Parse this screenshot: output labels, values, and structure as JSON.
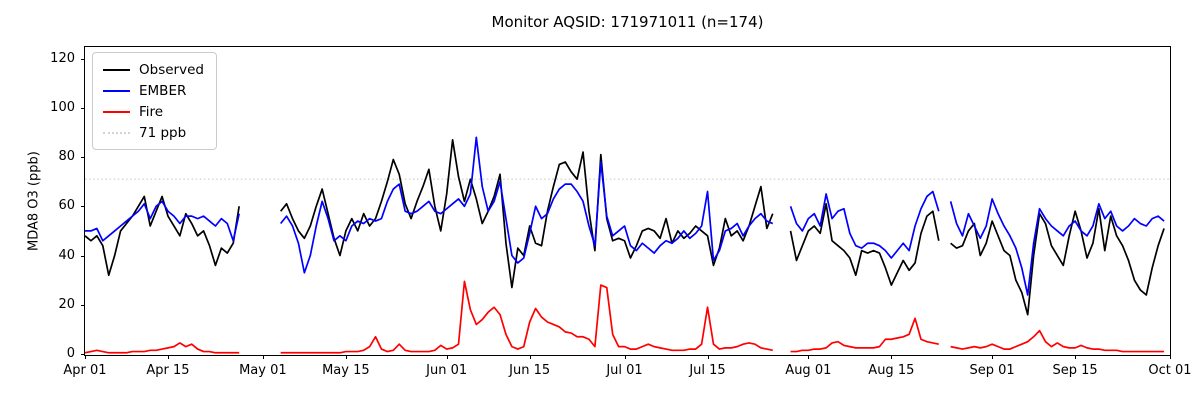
{
  "chart_data": {
    "type": "line",
    "title": "Monitor AQSID: 171971011 (n=174)",
    "xlabel": "",
    "ylabel": "MDA8 O3 (ppb)",
    "x_start_date": "Apr 01",
    "x_end_date": "Oct 01",
    "n_days": 183,
    "n_observations": 174,
    "ylim": [
      0,
      125
    ],
    "grid": false,
    "legend_position": "upper-left",
    "yticks": [
      0,
      20,
      40,
      60,
      80,
      100,
      120
    ],
    "xticks": [
      {
        "label": "Apr 01",
        "day": 0
      },
      {
        "label": "Apr 15",
        "day": 14
      },
      {
        "label": "May 01",
        "day": 30
      },
      {
        "label": "May 15",
        "day": 44
      },
      {
        "label": "Jun 01",
        "day": 61
      },
      {
        "label": "Jun 15",
        "day": 75
      },
      {
        "label": "Jul 01",
        "day": 91
      },
      {
        "label": "Jul 15",
        "day": 105
      },
      {
        "label": "Aug 01",
        "day": 122
      },
      {
        "label": "Aug 15",
        "day": 136
      },
      {
        "label": "Sep 01",
        "day": 153
      },
      {
        "label": "Sep 15",
        "day": 167
      },
      {
        "label": "Oct 01",
        "day": 183
      }
    ],
    "threshold": {
      "label": "71 ppb",
      "value": 71,
      "color": "#d4d4d4",
      "style": "dotted"
    },
    "series": [
      {
        "name": "Observed",
        "color": "#000000",
        "values": [
          48,
          46,
          48,
          44,
          32,
          40,
          50,
          53,
          56,
          60,
          64,
          52,
          58,
          64,
          56,
          52,
          48,
          57,
          53,
          48,
          50,
          44,
          36,
          43,
          41,
          45,
          60,
          null,
          null,
          null,
          null,
          null,
          null,
          58,
          61,
          55,
          50,
          47,
          52,
          60,
          67,
          57,
          47,
          40,
          50,
          55,
          50,
          57,
          52,
          55,
          62,
          70,
          79,
          73,
          61,
          55,
          62,
          68,
          75,
          60,
          50,
          65,
          87,
          72,
          62,
          71,
          63,
          53,
          58,
          64,
          73,
          45,
          27,
          43,
          40,
          52,
          45,
          44,
          58,
          68,
          77,
          78,
          74,
          71,
          82,
          58,
          42,
          81,
          55,
          46,
          47,
          46,
          39,
          44,
          50,
          51,
          50,
          47,
          55,
          45,
          50,
          47,
          49,
          52,
          50,
          48,
          36,
          43,
          55,
          48,
          50,
          46,
          52,
          60,
          68,
          51,
          57,
          null,
          null,
          50,
          38,
          44,
          50,
          52,
          49,
          61,
          46,
          44,
          42,
          39,
          32,
          42,
          41,
          42,
          41,
          35,
          28,
          33,
          38,
          34,
          37,
          49,
          56,
          58,
          46,
          null,
          45,
          43,
          44,
          50,
          53,
          40,
          45,
          54,
          48,
          42,
          40,
          30,
          25,
          16,
          40,
          57,
          53,
          44,
          40,
          36,
          48,
          58,
          50,
          39,
          45,
          59,
          42,
          56,
          48,
          44,
          38,
          30,
          26,
          24,
          35,
          44,
          51
        ]
      },
      {
        "name": "EMBER",
        "color": "#0000ff",
        "values": [
          50,
          50,
          51,
          46,
          48,
          50,
          52,
          54,
          56,
          58,
          61,
          55,
          60,
          62,
          58,
          56,
          53,
          56,
          56,
          55,
          56,
          54,
          52,
          55,
          53,
          46,
          57,
          null,
          null,
          null,
          null,
          null,
          null,
          53,
          56,
          52,
          45,
          33,
          40,
          52,
          62,
          55,
          46,
          48,
          46,
          52,
          54,
          53,
          55,
          54,
          55,
          62,
          67,
          69,
          58,
          57,
          58,
          60,
          62,
          58,
          57,
          59,
          61,
          63,
          60,
          65,
          88,
          68,
          58,
          62,
          70,
          55,
          40,
          37,
          39,
          49,
          60,
          55,
          57,
          63,
          67,
          69,
          69,
          66,
          62,
          52,
          44,
          78,
          56,
          48,
          50,
          52,
          44,
          42,
          45,
          43,
          41,
          44,
          46,
          45,
          47,
          50,
          47,
          49,
          52,
          66,
          38,
          42,
          50,
          51,
          53,
          48,
          52,
          55,
          57,
          54,
          53,
          null,
          null,
          60,
          53,
          50,
          55,
          57,
          52,
          65,
          55,
          58,
          59,
          49,
          44,
          43,
          45,
          45,
          44,
          42,
          39,
          42,
          45,
          42,
          52,
          59,
          64,
          66,
          58,
          null,
          62,
          53,
          48,
          57,
          52,
          47,
          52,
          63,
          57,
          52,
          48,
          43,
          35,
          24,
          45,
          59,
          55,
          52,
          50,
          48,
          52,
          54,
          50,
          48,
          52,
          61,
          55,
          58,
          52,
          50,
          52,
          55,
          53,
          52,
          55,
          56,
          54
        ]
      },
      {
        "name": "Fire",
        "color": "#ff0000",
        "values": [
          0.5,
          1,
          1.5,
          1,
          0.5,
          0.5,
          0.5,
          0.5,
          1,
          1,
          1,
          1.5,
          1.5,
          2,
          2.5,
          3,
          4.5,
          3,
          4,
          2,
          1,
          1,
          0.5,
          0.5,
          0.5,
          0.5,
          0.5,
          null,
          null,
          null,
          null,
          null,
          null,
          0.5,
          0.5,
          0.5,
          0.5,
          0.5,
          0.5,
          0.5,
          0.5,
          0.5,
          0.5,
          0.5,
          1,
          1,
          1,
          1.5,
          3,
          7,
          2,
          1,
          1.5,
          4,
          1.5,
          1,
          1,
          1,
          1,
          1.5,
          3.5,
          2,
          2.5,
          4,
          29.5,
          18,
          12,
          14,
          17,
          19,
          16,
          8,
          3,
          2,
          3,
          13,
          18.5,
          15,
          13,
          12,
          11,
          9,
          8.5,
          7,
          7,
          6,
          3,
          28,
          27,
          8,
          3,
          3,
          2,
          2,
          3,
          4,
          3,
          2.5,
          2,
          1.5,
          1.5,
          1.5,
          2,
          2,
          4,
          19,
          4,
          2,
          2.5,
          2.5,
          3,
          4,
          4.5,
          4,
          2.5,
          2,
          1.5,
          null,
          null,
          1,
          1,
          1.5,
          1.5,
          2,
          2,
          2.5,
          4.5,
          5,
          3.5,
          3,
          2.5,
          2.5,
          2.5,
          2.5,
          3,
          6,
          6,
          6.5,
          7,
          8,
          14.5,
          6,
          5,
          4.5,
          4,
          null,
          3,
          2.5,
          2,
          2.5,
          3,
          2.5,
          3,
          4,
          3,
          2,
          2,
          3,
          4,
          5,
          7,
          9.5,
          5,
          3,
          4.5,
          3,
          2.5,
          2.5,
          3.5,
          2.5,
          2,
          2,
          1.5,
          1.5,
          1.5,
          1,
          1,
          1,
          1,
          1,
          1,
          1,
          1
        ]
      }
    ]
  }
}
